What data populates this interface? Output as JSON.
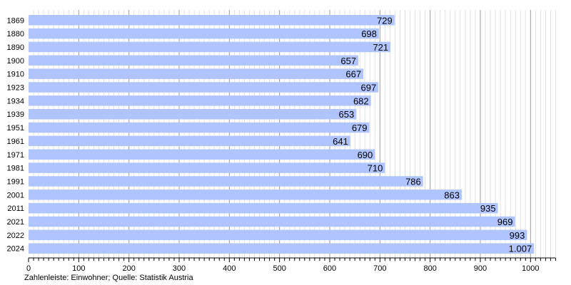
{
  "chart_data": {
    "type": "bar",
    "orientation": "horizontal",
    "categories": [
      "1869",
      "1880",
      "1890",
      "1900",
      "1910",
      "1923",
      "1934",
      "1939",
      "1951",
      "1961",
      "1971",
      "1981",
      "1991",
      "2001",
      "2011",
      "2021",
      "2022",
      "2024"
    ],
    "values": [
      729,
      698,
      721,
      657,
      667,
      697,
      682,
      653,
      679,
      641,
      690,
      710,
      786,
      863,
      935,
      969,
      993,
      1007
    ],
    "value_labels": [
      "729",
      "698",
      "721",
      "657",
      "667",
      "697",
      "682",
      "653",
      "679",
      "641",
      "690",
      "710",
      "786",
      "863",
      "935",
      "969",
      "993",
      "1.007"
    ],
    "xlim": [
      0,
      1050
    ],
    "x_ticks": [
      0,
      100,
      200,
      300,
      400,
      500,
      600,
      700,
      800,
      900,
      1000
    ],
    "x_tick_labels": [
      "0",
      "100",
      "200",
      "300",
      "400",
      "500",
      "600",
      "700",
      "800",
      "900",
      "1000"
    ],
    "grid": true,
    "bar_color": "#b0c4ff",
    "grid_minor_color": "#d9d9d9",
    "grid_major_color": "#9a9a9a",
    "title": "",
    "xlabel": "",
    "ylabel": ""
  },
  "footnote": "Zahlenleiste: Einwohner; Quelle: Statistik Austria"
}
